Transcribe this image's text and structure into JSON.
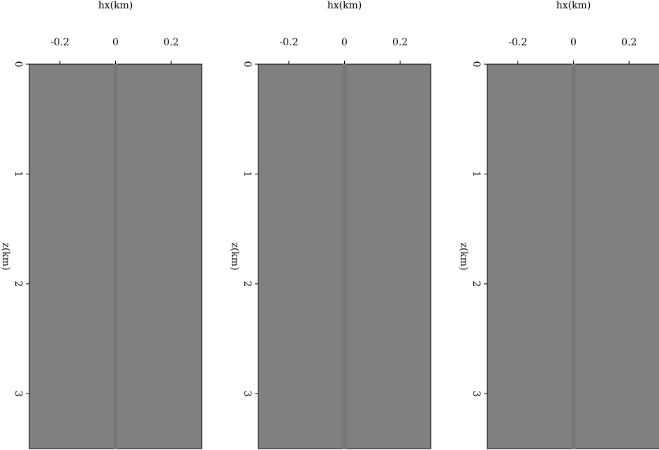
{
  "chart_data": [
    {
      "type": "image",
      "xlabel": "hx(km)",
      "ylabel": "z(km)",
      "xlim": [
        -0.31,
        0.31
      ],
      "ylim": [
        0,
        3.5
      ],
      "xticks": [
        -0.2,
        0,
        0.2
      ],
      "yticks": [
        0,
        1,
        2,
        3
      ]
    },
    {
      "type": "image",
      "xlabel": "hx(km)",
      "ylabel": "z(km)",
      "xlim": [
        -0.31,
        0.31
      ],
      "ylim": [
        0,
        3.5
      ],
      "xticks": [
        -0.2,
        0,
        0.2
      ],
      "yticks": [
        0,
        1,
        2,
        3
      ]
    },
    {
      "type": "image",
      "xlabel": "hx(km)",
      "ylabel": "z(km)",
      "xlim": [
        -0.31,
        0.31
      ],
      "ylim": [
        0,
        3.5
      ],
      "xticks": [
        -0.2,
        0,
        0.2
      ],
      "yticks": [
        0,
        1,
        2,
        3
      ]
    }
  ]
}
